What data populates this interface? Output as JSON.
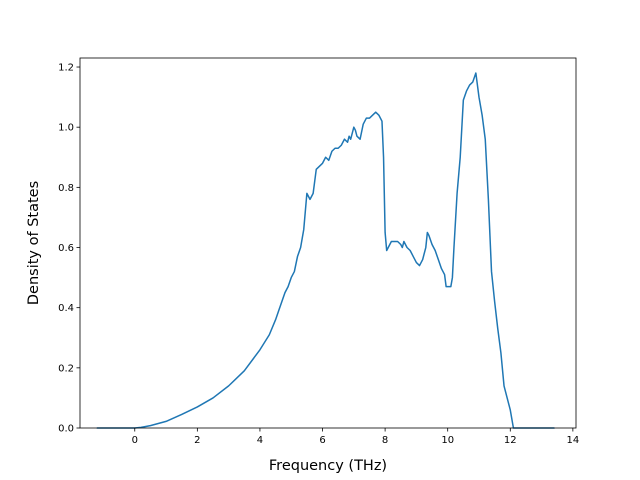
{
  "chart_data": {
    "type": "line",
    "title": "",
    "xlabel": "Frequency (THz)",
    "ylabel": "Density of States",
    "xlim": [
      -1.75,
      14.1
    ],
    "ylim": [
      0.0,
      1.23
    ],
    "xticks": [
      0,
      2,
      4,
      6,
      8,
      10,
      12,
      14
    ],
    "xtick_labels": [
      "0",
      "2",
      "4",
      "6",
      "8",
      "10",
      "12",
      "14"
    ],
    "yticks": [
      0.0,
      0.2,
      0.4,
      0.6,
      0.8,
      1.0,
      1.2
    ],
    "ytick_labels": [
      "0.0",
      "0.2",
      "0.4",
      "0.6",
      "0.8",
      "1.0",
      "1.2"
    ],
    "grid": false,
    "line_color": "#1f77b4",
    "series": [
      {
        "x": [
          -1.2,
          -0.8,
          -0.4,
          0.0,
          0.2,
          0.5,
          1.0,
          1.5,
          2.0,
          2.5,
          3.0,
          3.5,
          4.0,
          4.3,
          4.5,
          4.6,
          4.7,
          4.8,
          4.9,
          5.0,
          5.05,
          5.1,
          5.2,
          5.3,
          5.35,
          5.4,
          5.45,
          5.5,
          5.6,
          5.7,
          5.8,
          5.9,
          6.0,
          6.1,
          6.2,
          6.3,
          6.4,
          6.5,
          6.6,
          6.7,
          6.8,
          6.85,
          6.9,
          7.0,
          7.05,
          7.1,
          7.2,
          7.3,
          7.4,
          7.5,
          7.6,
          7.7,
          7.8,
          7.9,
          7.95,
          8.0,
          8.05,
          8.1,
          8.15,
          8.2,
          8.3,
          8.4,
          8.5,
          8.55,
          8.6,
          8.65,
          8.7,
          8.8,
          8.9,
          9.0,
          9.1,
          9.2,
          9.3,
          9.35,
          9.4,
          9.5,
          9.55,
          9.6,
          9.7,
          9.8,
          9.9,
          9.95,
          10.0,
          10.05,
          10.1,
          10.15,
          10.2,
          10.3,
          10.4,
          10.5,
          10.6,
          10.7,
          10.8,
          10.9,
          11.0,
          11.1,
          11.2,
          11.3,
          11.4,
          11.5,
          11.6,
          11.7,
          11.8,
          11.9,
          12.0,
          12.1,
          12.2,
          12.5,
          13.0,
          13.4
        ],
        "y": [
          0.0,
          0.0,
          0.0,
          0.0,
          0.002,
          0.008,
          0.022,
          0.045,
          0.07,
          0.1,
          0.14,
          0.19,
          0.26,
          0.31,
          0.36,
          0.39,
          0.42,
          0.45,
          0.47,
          0.5,
          0.51,
          0.52,
          0.57,
          0.6,
          0.63,
          0.66,
          0.72,
          0.78,
          0.76,
          0.78,
          0.86,
          0.87,
          0.88,
          0.9,
          0.89,
          0.92,
          0.93,
          0.93,
          0.94,
          0.96,
          0.95,
          0.97,
          0.96,
          1.0,
          0.99,
          0.97,
          0.96,
          1.01,
          1.03,
          1.03,
          1.04,
          1.05,
          1.04,
          1.02,
          0.9,
          0.65,
          0.59,
          0.6,
          0.61,
          0.62,
          0.62,
          0.62,
          0.61,
          0.6,
          0.62,
          0.61,
          0.6,
          0.59,
          0.57,
          0.55,
          0.54,
          0.56,
          0.6,
          0.65,
          0.64,
          0.61,
          0.6,
          0.59,
          0.56,
          0.53,
          0.51,
          0.47,
          0.47,
          0.47,
          0.47,
          0.5,
          0.6,
          0.78,
          0.9,
          1.09,
          1.12,
          1.14,
          1.15,
          1.18,
          1.1,
          1.04,
          0.96,
          0.76,
          0.52,
          0.42,
          0.33,
          0.25,
          0.14,
          0.1,
          0.06,
          0.0,
          0.0,
          0.0,
          0.0,
          0.0
        ]
      }
    ]
  }
}
